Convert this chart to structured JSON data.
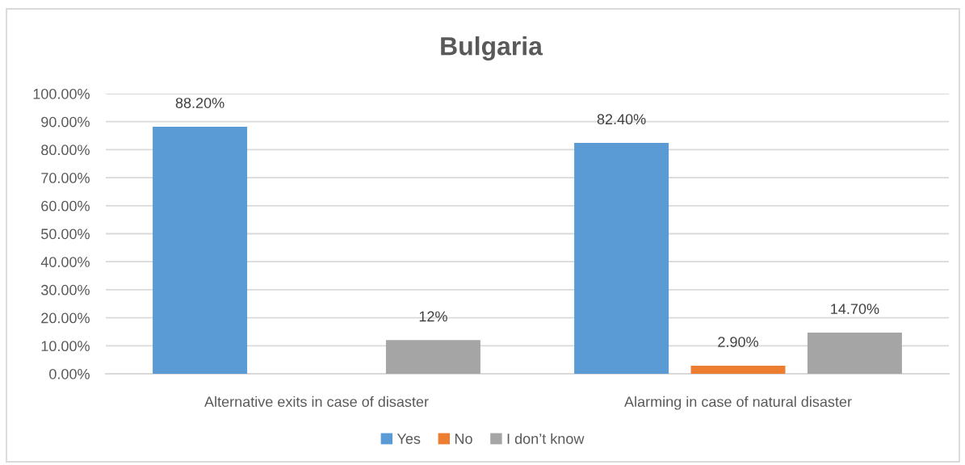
{
  "chart_data": {
    "type": "bar",
    "title": "Bulgaria",
    "categories": [
      "Alternative exits in case of disaster",
      "Alarming in case of natural disaster"
    ],
    "series": [
      {
        "name": "Yes",
        "color": "#5b9bd5",
        "values": [
          88.2,
          82.4
        ],
        "value_labels": [
          "88.20%",
          "82.40%"
        ]
      },
      {
        "name": "No",
        "color": "#ed7d31",
        "values": [
          null,
          2.9
        ],
        "value_labels": [
          null,
          "2.90%"
        ]
      },
      {
        "name": "I don’t know",
        "color": "#a5a5a5",
        "values": [
          12,
          14.7
        ],
        "value_labels": [
          "12%",
          "14.70%"
        ]
      }
    ],
    "ylim": [
      0,
      100
    ],
    "yticks": [
      {
        "value": 0,
        "label": "0.00%"
      },
      {
        "value": 10,
        "label": "10.00%"
      },
      {
        "value": 20,
        "label": "20.00%"
      },
      {
        "value": 30,
        "label": "30.00%"
      },
      {
        "value": 40,
        "label": "40.00%"
      },
      {
        "value": 50,
        "label": "50.00%"
      },
      {
        "value": 60,
        "label": "60.00%"
      },
      {
        "value": 70,
        "label": "70.00%"
      },
      {
        "value": 80,
        "label": "80.00%"
      },
      {
        "value": 90,
        "label": "90.00%"
      },
      {
        "value": 100,
        "label": "100.00%"
      }
    ],
    "grid": "y",
    "legend": "bottom"
  }
}
